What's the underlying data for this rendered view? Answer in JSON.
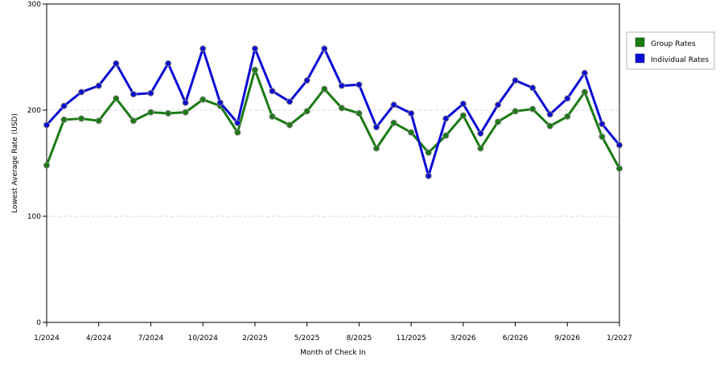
{
  "chart_data": {
    "type": "line",
    "title": "",
    "xlabel": "Month of Check In",
    "ylabel": "Lowest Average Rate (USD)",
    "ylim": [
      0,
      300
    ],
    "yticks": [
      0,
      100,
      200,
      300
    ],
    "x_tick_labels": [
      {
        "index": 0,
        "label": "1/2024"
      },
      {
        "index": 3,
        "label": "4/2024"
      },
      {
        "index": 6,
        "label": "7/2024"
      },
      {
        "index": 9,
        "label": "10/2024"
      },
      {
        "index": 12,
        "label": "2/2025"
      },
      {
        "index": 15,
        "label": "5/2025"
      },
      {
        "index": 18,
        "label": "8/2025"
      },
      {
        "index": 21,
        "label": "11/2025"
      },
      {
        "index": 24,
        "label": "3/2026"
      },
      {
        "index": 27,
        "label": "6/2026"
      },
      {
        "index": 30,
        "label": "9/2026"
      },
      {
        "index": 33,
        "label": "1/2027"
      }
    ],
    "grid": "horizontal dashed",
    "legend_position": "right",
    "series": [
      {
        "name": "Group Rates",
        "color": "#1a7a12",
        "values": [
          148,
          191,
          192,
          190,
          211,
          190,
          198,
          197,
          198,
          210,
          204,
          179,
          238,
          194,
          186,
          199,
          220,
          202,
          197,
          164,
          188,
          179,
          160,
          176,
          195,
          164,
          189,
          199,
          201,
          185,
          194,
          217,
          175,
          145
        ]
      },
      {
        "name": "Individual Rates",
        "color": "#0a0ad6",
        "values": [
          186,
          204,
          217,
          223,
          244,
          215,
          216,
          244,
          207,
          258,
          207,
          188,
          258,
          218,
          208,
          228,
          258,
          223,
          224,
          184,
          205,
          197,
          138,
          192,
          206,
          178,
          205,
          228,
          221,
          196,
          211,
          235,
          187,
          167
        ]
      }
    ]
  }
}
